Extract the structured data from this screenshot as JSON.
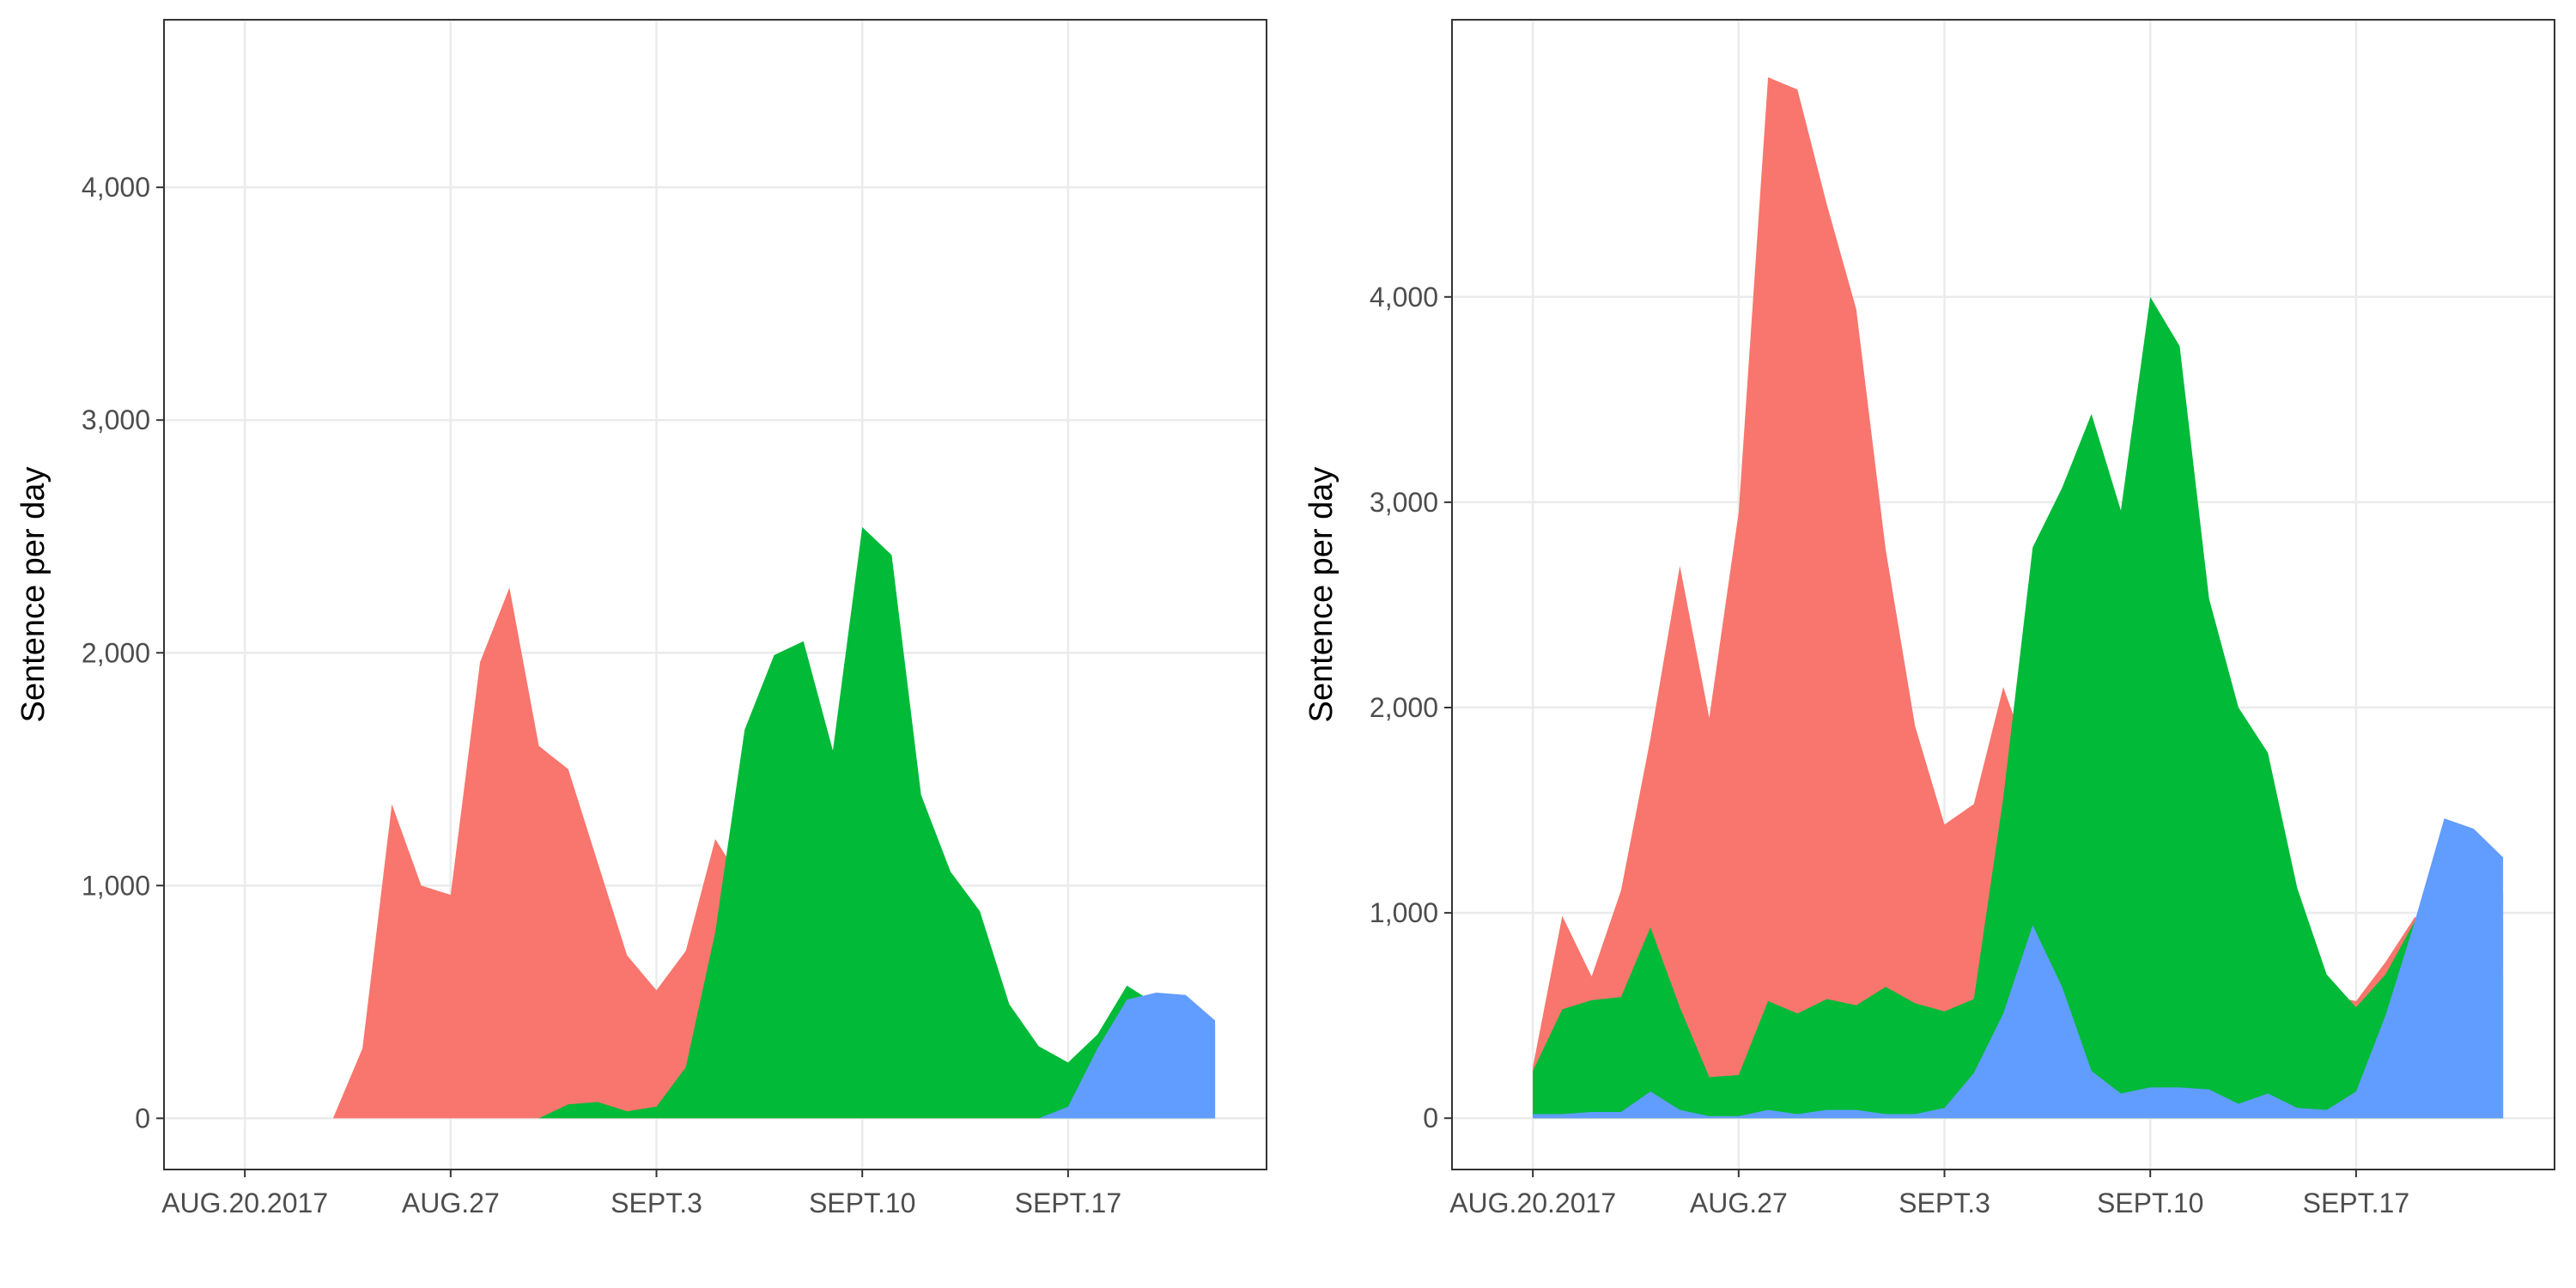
{
  "chart_data": [
    {
      "type": "area",
      "ylabel": "Sentence per day",
      "x": [
        "2017-08-20",
        "2017-08-21",
        "2017-08-22",
        "2017-08-23",
        "2017-08-24",
        "2017-08-25",
        "2017-08-26",
        "2017-08-27",
        "2017-08-28",
        "2017-08-29",
        "2017-08-30",
        "2017-08-31",
        "2017-09-01",
        "2017-09-02",
        "2017-09-03",
        "2017-09-04",
        "2017-09-05",
        "2017-09-06",
        "2017-09-07",
        "2017-09-08",
        "2017-09-09",
        "2017-09-10",
        "2017-09-11",
        "2017-09-12",
        "2017-09-13",
        "2017-09-14",
        "2017-09-15",
        "2017-09-16",
        "2017-09-17",
        "2017-09-18",
        "2017-09-19",
        "2017-09-20",
        "2017-09-21",
        "2017-09-22"
      ],
      "series": [
        {
          "color": "#F8766D",
          "values": [
            null,
            null,
            0,
            0,
            300,
            1350,
            1000,
            960,
            1960,
            2280,
            1600,
            1500,
            1100,
            700,
            550,
            720,
            1200,
            1000,
            900,
            800,
            700,
            600,
            500,
            400,
            300,
            250,
            200,
            150,
            100,
            50,
            0,
            null,
            null,
            null
          ]
        },
        {
          "color": "#00BA38",
          "values": [
            null,
            null,
            null,
            null,
            null,
            null,
            null,
            null,
            null,
            null,
            0,
            60,
            70,
            30,
            50,
            220,
            800,
            1670,
            1990,
            2050,
            1580,
            2540,
            2420,
            1390,
            1060,
            890,
            490,
            310,
            240,
            360,
            570,
            490,
            450,
            400
          ]
        },
        {
          "color": "#619CFF",
          "values": [
            null,
            null,
            null,
            null,
            null,
            null,
            null,
            null,
            null,
            null,
            null,
            null,
            null,
            null,
            null,
            null,
            null,
            null,
            null,
            null,
            null,
            null,
            null,
            null,
            null,
            null,
            null,
            0,
            50,
            300,
            510,
            540,
            530,
            420
          ]
        }
      ],
      "xlim": [
        "2017-08-17T06:00",
        "2017-09-23T18:00"
      ],
      "xticks": [
        {
          "value": "2017-08-20",
          "label": "AUG.20.2017"
        },
        {
          "value": "2017-08-27",
          "label": "AUG.27"
        },
        {
          "value": "2017-09-03",
          "label": "SEPT.3"
        },
        {
          "value": "2017-09-10",
          "label": "SEPT.10"
        },
        {
          "value": "2017-09-17",
          "label": "SEPT.17"
        }
      ],
      "ylim": [
        -220,
        4720
      ],
      "yticks": [
        0,
        {
          "value": 1000,
          "label": "1,000"
        },
        {
          "value": 2000,
          "label": "2,000"
        },
        {
          "value": 3000,
          "label": "3,000"
        },
        {
          "value": 4000,
          "label": "4,000"
        }
      ],
      "grid": true
    },
    {
      "type": "area",
      "ylabel": "Sentence per day",
      "x": [
        "2017-08-20",
        "2017-08-21",
        "2017-08-22",
        "2017-08-23",
        "2017-08-24",
        "2017-08-25",
        "2017-08-26",
        "2017-08-27",
        "2017-08-28",
        "2017-08-29",
        "2017-08-30",
        "2017-08-31",
        "2017-09-01",
        "2017-09-02",
        "2017-09-03",
        "2017-09-04",
        "2017-09-05",
        "2017-09-06",
        "2017-09-07",
        "2017-09-08",
        "2017-09-09",
        "2017-09-10",
        "2017-09-11",
        "2017-09-12",
        "2017-09-13",
        "2017-09-14",
        "2017-09-15",
        "2017-09-16",
        "2017-09-17",
        "2017-09-18",
        "2017-09-19",
        "2017-09-20",
        "2017-09-21",
        "2017-09-22"
      ],
      "series": [
        {
          "color": "#F8766D",
          "values": [
            250,
            985,
            690,
            1110,
            1850,
            2690,
            1950,
            2950,
            5070,
            5010,
            4450,
            3940,
            2770,
            1910,
            1430,
            1530,
            2100,
            1700,
            1500,
            1300,
            1200,
            1100,
            1000,
            900,
            800,
            700,
            650,
            600,
            570,
            760,
            980,
            900,
            800,
            700
          ]
        },
        {
          "color": "#00BA38",
          "values": [
            230,
            530,
            575,
            590,
            930,
            540,
            200,
            210,
            570,
            510,
            580,
            550,
            640,
            560,
            520,
            580,
            1560,
            2780,
            3070,
            3430,
            2960,
            4000,
            3760,
            2530,
            2000,
            1780,
            1120,
            700,
            540,
            700,
            960,
            1300,
            1200,
            1100
          ]
        },
        {
          "color": "#619CFF",
          "values": [
            20,
            20,
            30,
            30,
            130,
            40,
            10,
            10,
            40,
            20,
            40,
            40,
            20,
            20,
            50,
            220,
            510,
            940,
            640,
            230,
            120,
            150,
            150,
            140,
            70,
            120,
            50,
            40,
            130,
            500,
            960,
            1460,
            1410,
            1270
          ]
        }
      ],
      "xlim": [
        "2017-08-17T06:00",
        "2017-09-23T18:00"
      ],
      "xticks": [
        {
          "value": "2017-08-20",
          "label": "AUG.20.2017"
        },
        {
          "value": "2017-08-27",
          "label": "AUG.27"
        },
        {
          "value": "2017-09-03",
          "label": "SEPT.3"
        },
        {
          "value": "2017-09-10",
          "label": "SEPT.10"
        },
        {
          "value": "2017-09-17",
          "label": "SEPT.17"
        }
      ],
      "ylim": [
        -250,
        5350
      ],
      "yticks": [
        0,
        {
          "value": 1000,
          "label": "1,000"
        },
        {
          "value": 2000,
          "label": "2,000"
        },
        {
          "value": 3000,
          "label": "3,000"
        },
        {
          "value": 4000,
          "label": "4,000"
        }
      ],
      "grid": true
    }
  ]
}
